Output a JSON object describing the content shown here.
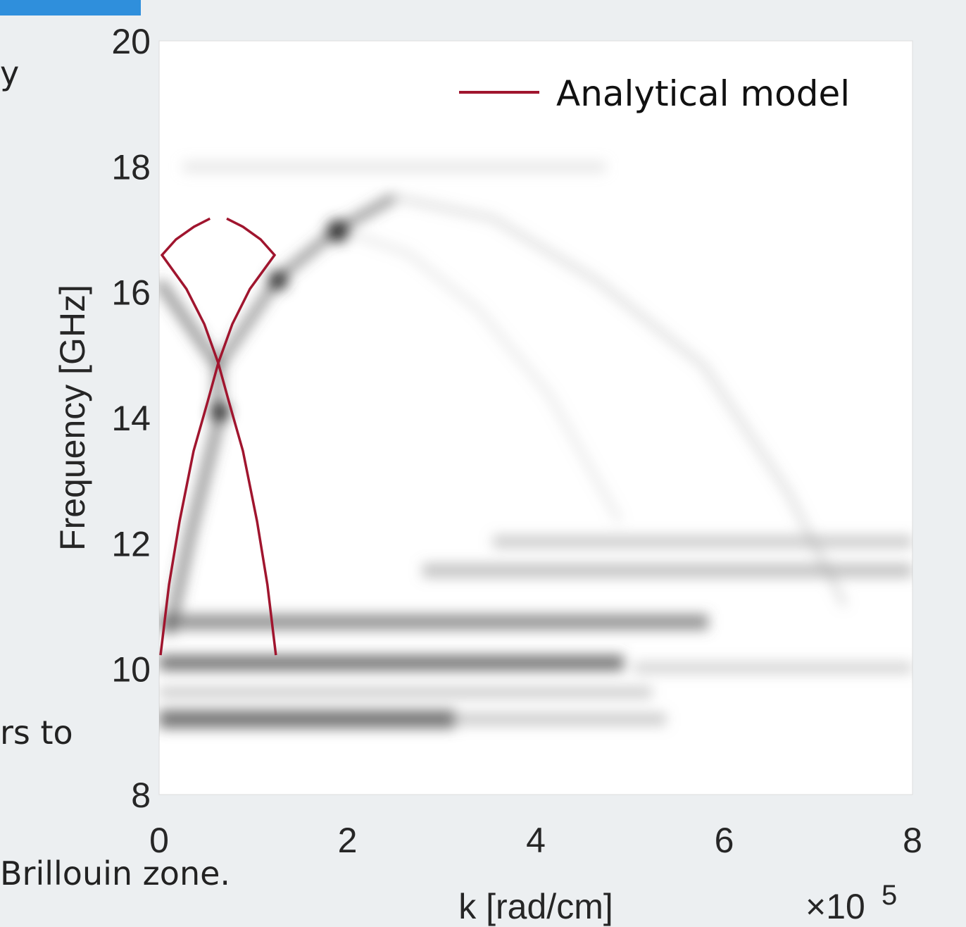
{
  "page_text": [
    "y",
    "rs to",
    "Brillouin zone."
  ],
  "chart_data": {
    "type": "line",
    "ylabel": "Frequency [GHz]",
    "xlabel": "k [rad/cm]",
    "x_multiplier": "×10",
    "x_exponent": "5",
    "xlim": [
      0,
      8
    ],
    "ylim": [
      8,
      20
    ],
    "xticks": [
      0,
      2,
      4,
      6,
      8
    ],
    "yticks": [
      8,
      10,
      12,
      14,
      16,
      18,
      20
    ],
    "legend": "upper right",
    "series": [
      {
        "name": "Analytical model",
        "color": "#a0152e",
        "x": [
          0.015,
          0.105,
          0.217,
          0.366,
          0.516,
          0.628,
          0.777,
          0.964,
          1.226,
          1.077,
          0.89,
          0.718
        ],
        "values": [
          10.22,
          11.34,
          12.35,
          13.47,
          14.26,
          14.87,
          15.49,
          16.05,
          16.59,
          16.84,
          17.04,
          17.17
        ]
      },
      {
        "color": "#a0152e",
        "x": [
          1.24,
          1.15,
          1.04,
          0.89,
          0.74,
          0.628,
          0.48,
          0.29,
          0.03,
          0.18,
          0.37,
          0.54
        ],
        "values": [
          10.22,
          11.34,
          12.35,
          13.47,
          14.26,
          14.87,
          15.49,
          16.05,
          16.59,
          16.84,
          17.04,
          17.17
        ]
      }
    ]
  }
}
